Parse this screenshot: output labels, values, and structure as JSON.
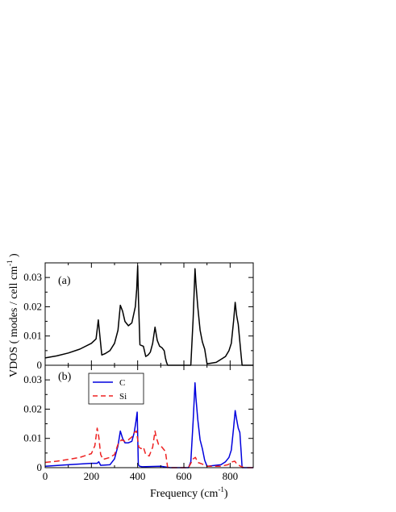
{
  "chart_data": [
    {
      "type": "line",
      "panel": "(a)",
      "xlim": [
        0,
        900
      ],
      "ylim": [
        0,
        0.035
      ],
      "xticks": [
        0,
        200,
        400,
        600,
        800
      ],
      "yticks": [
        0,
        0.01,
        0.02,
        0.03
      ],
      "ytick_labels": [
        "0",
        "0.01",
        "0.02",
        "0.03"
      ],
      "xtick_labels_shown": false,
      "grid": false,
      "series": [
        {
          "color": "#000000",
          "dash": "solid",
          "x": [
            0,
            50,
            100,
            150,
            200,
            220,
            230,
            238,
            245,
            260,
            280,
            300,
            315,
            325,
            335,
            345,
            360,
            375,
            390,
            396,
            400,
            404,
            410,
            415,
            425,
            435,
            445,
            455,
            465,
            475,
            485,
            495,
            505,
            515,
            520,
            525,
            530,
            630,
            640,
            648,
            652,
            660,
            670,
            680,
            690,
            700,
            740,
            760,
            780,
            795,
            805,
            815,
            822,
            828,
            835,
            842,
            848,
            852,
            860,
            900
          ],
          "y": [
            0.0025,
            0.0032,
            0.0042,
            0.0055,
            0.0075,
            0.009,
            0.0155,
            0.009,
            0.0035,
            0.004,
            0.005,
            0.0075,
            0.012,
            0.0205,
            0.0185,
            0.015,
            0.0135,
            0.0145,
            0.02,
            0.026,
            0.034,
            0.0215,
            0.007,
            0.0068,
            0.0065,
            0.003,
            0.0035,
            0.0045,
            0.0075,
            0.013,
            0.0085,
            0.0065,
            0.006,
            0.005,
            0.0025,
            0.001,
            0.0,
            0.0,
            0.016,
            0.033,
            0.028,
            0.02,
            0.012,
            0.008,
            0.0055,
            0.0005,
            0.001,
            0.002,
            0.003,
            0.005,
            0.0075,
            0.015,
            0.0215,
            0.017,
            0.014,
            0.008,
            0.003,
            0.0,
            0.0,
            0.0
          ]
        }
      ]
    },
    {
      "type": "line",
      "panel": "(b)",
      "xlim": [
        0,
        900
      ],
      "ylim": [
        0,
        0.035
      ],
      "xticks": [
        0,
        200,
        400,
        600,
        800
      ],
      "xtick_labels": [
        "0",
        "200",
        "400",
        "600",
        "800"
      ],
      "yticks": [
        0,
        0.01,
        0.02,
        0.03
      ],
      "ytick_labels": [
        "0",
        "0.01",
        "0.02",
        "0.03"
      ],
      "xlabel": "Frequency  (cm",
      "xlabel_sup": "-1",
      "xlabel_end": ")",
      "ylabel": "VDOS  ( modes / cell  cm",
      "ylabel_sup": "-1",
      "ylabel_end": " )",
      "legend": "top-left",
      "grid": false,
      "series": [
        {
          "name": "C",
          "color": "#0000dd",
          "dash": "solid",
          "x": [
            0,
            100,
            200,
            225,
            232,
            240,
            280,
            300,
            315,
            325,
            335,
            345,
            360,
            375,
            385,
            392,
            398,
            403,
            408,
            420,
            500,
            540,
            620,
            630,
            640,
            648,
            652,
            660,
            670,
            680,
            690,
            700,
            760,
            780,
            795,
            805,
            815,
            822,
            828,
            835,
            842,
            848,
            852,
            860,
            900
          ],
          "y": [
            0.0005,
            0.001,
            0.0015,
            0.0015,
            0.002,
            0.0008,
            0.001,
            0.003,
            0.0075,
            0.0125,
            0.01,
            0.0085,
            0.0085,
            0.009,
            0.012,
            0.0155,
            0.019,
            0.001,
            0.0005,
            0.0003,
            0.0005,
            0.0,
            0.0,
            0.002,
            0.016,
            0.029,
            0.024,
            0.0165,
            0.0095,
            0.0065,
            0.0025,
            0.0005,
            0.001,
            0.002,
            0.0035,
            0.006,
            0.0135,
            0.0195,
            0.0165,
            0.0135,
            0.012,
            0.005,
            0.0,
            0.0,
            0.0
          ]
        },
        {
          "name": "Si",
          "color": "#ee2222",
          "dash": "dashed",
          "x": [
            0,
            50,
            100,
            150,
            200,
            215,
            225,
            232,
            240,
            250,
            280,
            300,
            315,
            330,
            345,
            360,
            375,
            385,
            395,
            405,
            415,
            425,
            435,
            450,
            465,
            475,
            480,
            490,
            505,
            520,
            530,
            540,
            620,
            640,
            650,
            660,
            680,
            700,
            760,
            790,
            800,
            810,
            820,
            830,
            845,
            860,
            900
          ],
          "y": [
            0.0018,
            0.0022,
            0.0028,
            0.0035,
            0.0048,
            0.0075,
            0.0135,
            0.0105,
            0.0045,
            0.0028,
            0.0035,
            0.0045,
            0.008,
            0.0095,
            0.009,
            0.0095,
            0.0105,
            0.012,
            0.0125,
            0.007,
            0.0065,
            0.007,
            0.0045,
            0.004,
            0.007,
            0.0125,
            0.0105,
            0.008,
            0.007,
            0.0055,
            0.0,
            0.0,
            0.0,
            0.003,
            0.0035,
            0.0018,
            0.0012,
            0.0005,
            0.0005,
            0.001,
            0.0015,
            0.002,
            0.0022,
            0.0012,
            0.0005,
            0.0,
            0.0
          ]
        }
      ]
    }
  ]
}
